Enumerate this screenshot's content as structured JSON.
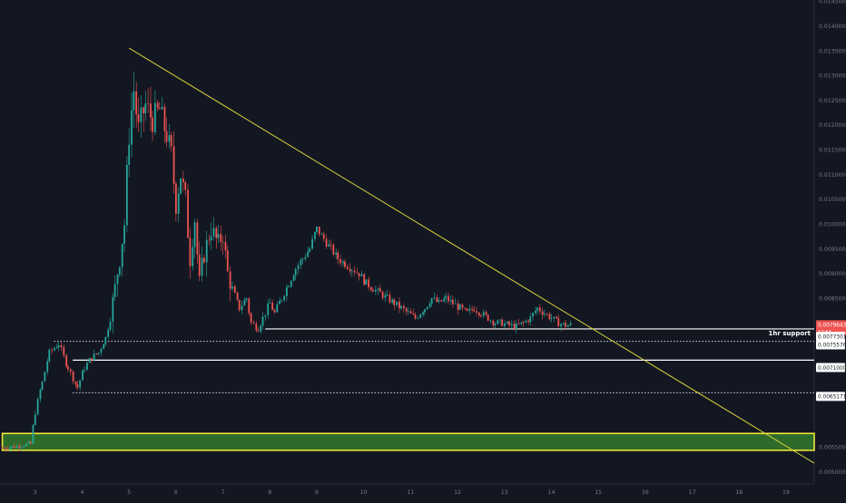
{
  "chart_data": {
    "type": "candlestick",
    "title": "",
    "background": "#131722",
    "colors": {
      "up": "#26a69a",
      "down": "#ef5350",
      "trendline": "#d6d23a",
      "zone_fill": "#2e6b2a",
      "zone_border": "#f0e53c",
      "level": "#ffffff",
      "axis_text": "#787b86",
      "price_badge": "#ef5350"
    },
    "x_axis": {
      "unit": "day",
      "ticks": [
        "3",
        "4",
        "5",
        "6",
        "7",
        "8",
        "9",
        "10",
        "11",
        "12",
        "13",
        "14",
        "15",
        "16",
        "17",
        "18",
        "19"
      ],
      "range": [
        2.25,
        19.6
      ]
    },
    "y_axis": {
      "side": "right",
      "range": [
        0.00475,
        0.01452
      ],
      "ticks": [
        "0.0145000",
        "0.0140000",
        "0.0135000",
        "0.0130000",
        "0.0125000",
        "0.0120000",
        "0.0115000",
        "0.0110000",
        "0.0105000",
        "0.0100000",
        "0.0095000",
        "0.0090000",
        "0.0085000",
        "0.0080000",
        "0.0055000",
        "0.0050000"
      ],
      "tick_values": [
        0.0145,
        0.014,
        0.0135,
        0.013,
        0.0125,
        0.012,
        0.0115,
        0.011,
        0.0105,
        0.01,
        0.0095,
        0.009,
        0.0085,
        0.008,
        0.0055,
        0.005
      ]
    },
    "price_series": [
      [
        2.3,
        0.00548
      ],
      [
        2.5,
        0.0055
      ],
      [
        2.7,
        0.00553
      ],
      [
        2.9,
        0.00556
      ],
      [
        3.0,
        0.0062
      ],
      [
        3.15,
        0.0068
      ],
      [
        3.3,
        0.0074
      ],
      [
        3.5,
        0.00758
      ],
      [
        3.7,
        0.0071
      ],
      [
        3.9,
        0.0067
      ],
      [
        4.05,
        0.0071
      ],
      [
        4.2,
        0.0073
      ],
      [
        4.35,
        0.0074
      ],
      [
        4.5,
        0.0077
      ],
      [
        4.6,
        0.0081
      ],
      [
        4.7,
        0.0087
      ],
      [
        4.8,
        0.0093
      ],
      [
        4.9,
        0.01
      ],
      [
        5.0,
        0.0118
      ],
      [
        5.1,
        0.0127
      ],
      [
        5.2,
        0.0119
      ],
      [
        5.35,
        0.0124
      ],
      [
        5.5,
        0.0121
      ],
      [
        5.65,
        0.0123
      ],
      [
        5.8,
        0.0118
      ],
      [
        5.9,
        0.0114
      ],
      [
        6.0,
        0.0104
      ],
      [
        6.1,
        0.011
      ],
      [
        6.2,
        0.0105
      ],
      [
        6.3,
        0.0093
      ],
      [
        6.4,
        0.0101
      ],
      [
        6.5,
        0.0088
      ],
      [
        6.6,
        0.0094
      ],
      [
        6.75,
        0.0099
      ],
      [
        6.9,
        0.0096
      ],
      [
        7.0,
        0.0098
      ],
      [
        7.1,
        0.009
      ],
      [
        7.2,
        0.0087
      ],
      [
        7.35,
        0.0083
      ],
      [
        7.5,
        0.0085
      ],
      [
        7.6,
        0.008
      ],
      [
        7.75,
        0.0079
      ],
      [
        7.85,
        0.0081
      ],
      [
        8.0,
        0.0084
      ],
      [
        8.1,
        0.0082
      ],
      [
        8.25,
        0.0085
      ],
      [
        8.4,
        0.0088
      ],
      [
        8.55,
        0.0091
      ],
      [
        8.7,
        0.0093
      ],
      [
        8.85,
        0.0095
      ],
      [
        9.0,
        0.0099
      ],
      [
        9.15,
        0.0097
      ],
      [
        9.3,
        0.0095
      ],
      [
        9.45,
        0.0093
      ],
      [
        9.6,
        0.0092
      ],
      [
        9.75,
        0.0091
      ],
      [
        9.9,
        0.009
      ],
      [
        10.05,
        0.0088
      ],
      [
        10.2,
        0.0087
      ],
      [
        10.35,
        0.0086
      ],
      [
        10.5,
        0.0085
      ],
      [
        10.65,
        0.0084
      ],
      [
        10.8,
        0.0083
      ],
      [
        10.95,
        0.0082
      ],
      [
        11.1,
        0.0081
      ],
      [
        11.3,
        0.0083
      ],
      [
        11.45,
        0.0085
      ],
      [
        11.6,
        0.0084
      ],
      [
        11.75,
        0.0085
      ],
      [
        11.9,
        0.0084
      ],
      [
        12.05,
        0.0083
      ],
      [
        12.2,
        0.0082
      ],
      [
        12.35,
        0.0083
      ],
      [
        12.5,
        0.0082
      ],
      [
        12.65,
        0.0081
      ],
      [
        12.8,
        0.008
      ],
      [
        12.95,
        0.008
      ],
      [
        13.1,
        0.00795
      ],
      [
        13.25,
        0.00793
      ],
      [
        13.4,
        0.008
      ],
      [
        13.55,
        0.0081
      ],
      [
        13.7,
        0.0083
      ],
      [
        13.85,
        0.0082
      ],
      [
        14.0,
        0.0081
      ],
      [
        14.15,
        0.008
      ],
      [
        14.3,
        0.00795
      ],
      [
        14.45,
        0.00796
      ]
    ],
    "annotations": {
      "trendline": {
        "from": [
          5.0,
          0.01355
        ],
        "to": [
          19.6,
          0.00517
        ]
      },
      "support_zone": {
        "x_start": 2.3,
        "y_low": 0.00543,
        "y_high": 0.00577
      },
      "one_hr_support": {
        "x_start": 7.9,
        "price": 0.00788,
        "label": "1hr support"
      },
      "solid_level": {
        "x_start": 3.8,
        "price": 0.00725
      },
      "dotted_level_1": {
        "x_start": 3.4,
        "price": 0.00763
      },
      "dotted_level_2": {
        "x_start": 3.8,
        "price": 0.00659
      }
    },
    "price_tags": [
      {
        "text": "0.0079643",
        "value": 0.0079643,
        "sub": "12:54",
        "style": "badge"
      },
      {
        "text": "0.0077301",
        "value": 0.0077301,
        "style": "box"
      },
      {
        "text": "0.0075576",
        "value": 0.0075576,
        "style": "box"
      },
      {
        "text": "0.0071000",
        "value": 0.0071,
        "style": "box"
      },
      {
        "text": "0.0065171",
        "value": 0.0065171,
        "style": "box"
      }
    ]
  }
}
